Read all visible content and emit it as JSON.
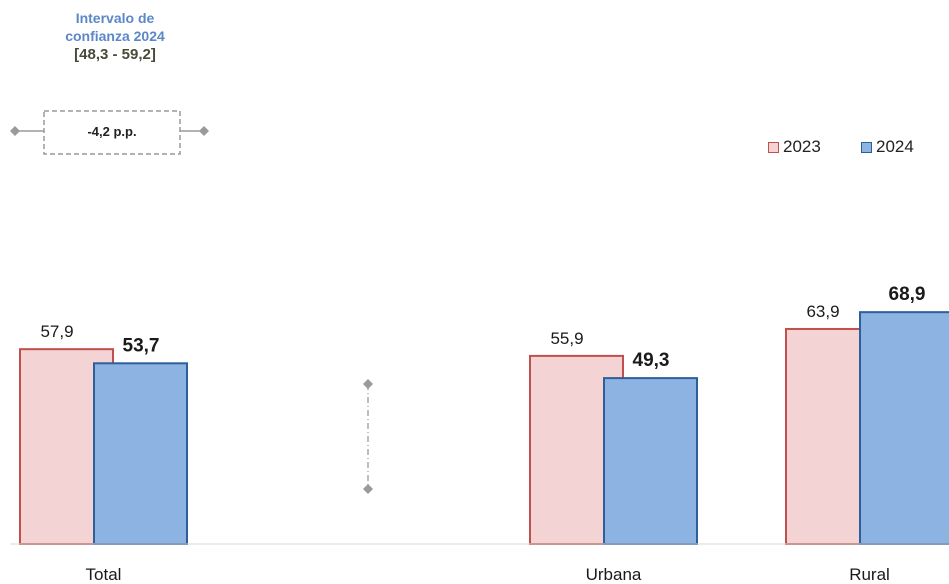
{
  "confidence_interval": {
    "title_line1": "Intervalo de",
    "title_line2": "confianza 2024",
    "range": "[48,3 - 59,2]"
  },
  "change_label": "-4,2 p.p.",
  "colors": {
    "fill_2023": "#f3d3d3",
    "border_2023": "#c0504d",
    "fill_2024": "#8db3e2",
    "border_2024": "#2f5f9a",
    "connector": "#9a9a9a"
  },
  "chart_data": {
    "type": "bar",
    "categories": [
      "Total",
      "Urbana",
      "Rural"
    ],
    "series": [
      {
        "name": "2023",
        "values": [
          57.9,
          55.9,
          63.9
        ],
        "labels": [
          "57,9",
          "55,9",
          "63,9"
        ]
      },
      {
        "name": "2024",
        "values": [
          53.7,
          49.3,
          68.9
        ],
        "labels": [
          "53,7",
          "49,3",
          "68,9"
        ]
      }
    ],
    "legend_position": "top-right",
    "grid": false,
    "ylim": [
      0,
      100
    ]
  }
}
